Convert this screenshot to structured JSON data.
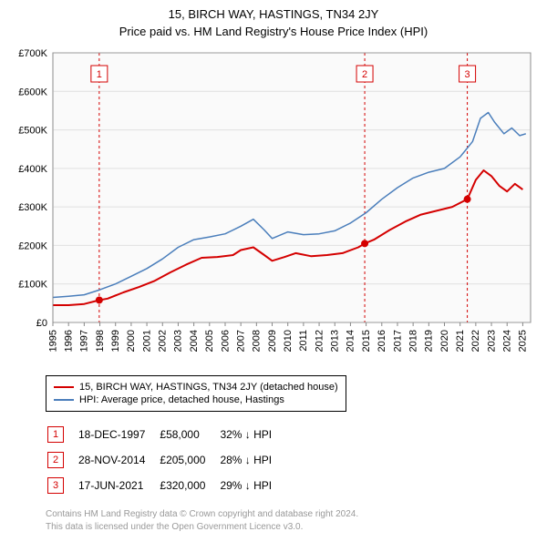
{
  "title_line1": "15, BIRCH WAY, HASTINGS, TN34 2JY",
  "title_line2": "Price paid vs. HM Land Registry's House Price Index (HPI)",
  "chart": {
    "type": "line",
    "background_color": "#ffffff",
    "plot_bg_color": "#fafafa",
    "grid_color": "#e0e0e0",
    "axis_color": "#888888",
    "font_family": "Arial",
    "label_fontsize": 11,
    "x_range": [
      1995,
      2025.5
    ],
    "x_ticks": [
      1995,
      1996,
      1997,
      1998,
      1999,
      2000,
      2001,
      2002,
      2003,
      2004,
      2005,
      2006,
      2007,
      2008,
      2009,
      2010,
      2011,
      2012,
      2013,
      2014,
      2015,
      2016,
      2017,
      2018,
      2019,
      2020,
      2021,
      2022,
      2023,
      2024,
      2025
    ],
    "xtick_label_rotation": -90,
    "y_range": [
      0,
      700000
    ],
    "y_ticks": [
      0,
      100000,
      200000,
      300000,
      400000,
      500000,
      600000,
      700000
    ],
    "y_tick_labels": [
      "£0",
      "£100K",
      "£200K",
      "£300K",
      "£400K",
      "£500K",
      "£600K",
      "£700K"
    ],
    "series": [
      {
        "name": "price_paid",
        "label": "15, BIRCH WAY, HASTINGS, TN34 2JY (detached house)",
        "color": "#d40000",
        "line_width": 2,
        "data": [
          [
            1995.0,
            45000
          ],
          [
            1996.0,
            45000
          ],
          [
            1997.0,
            48000
          ],
          [
            1997.96,
            58000
          ],
          [
            1998.5,
            62000
          ],
          [
            1999.5,
            78000
          ],
          [
            2000.5,
            92000
          ],
          [
            2001.5,
            108000
          ],
          [
            2002.5,
            130000
          ],
          [
            2003.5,
            150000
          ],
          [
            2004.5,
            168000
          ],
          [
            2005.5,
            170000
          ],
          [
            2006.5,
            175000
          ],
          [
            2007.0,
            188000
          ],
          [
            2007.8,
            195000
          ],
          [
            2008.5,
            175000
          ],
          [
            2009.0,
            160000
          ],
          [
            2009.8,
            170000
          ],
          [
            2010.5,
            180000
          ],
          [
            2011.5,
            172000
          ],
          [
            2012.5,
            175000
          ],
          [
            2013.5,
            180000
          ],
          [
            2014.5,
            195000
          ],
          [
            2014.91,
            205000
          ],
          [
            2015.5,
            215000
          ],
          [
            2016.5,
            240000
          ],
          [
            2017.5,
            262000
          ],
          [
            2018.5,
            280000
          ],
          [
            2019.5,
            290000
          ],
          [
            2020.5,
            300000
          ],
          [
            2021.46,
            320000
          ],
          [
            2022.0,
            370000
          ],
          [
            2022.5,
            395000
          ],
          [
            2023.0,
            380000
          ],
          [
            2023.5,
            355000
          ],
          [
            2024.0,
            340000
          ],
          [
            2024.5,
            360000
          ],
          [
            2025.0,
            345000
          ]
        ]
      },
      {
        "name": "hpi",
        "label": "HPI: Average price, detached house, Hastings",
        "color": "#4a7ebb",
        "line_width": 1.5,
        "data": [
          [
            1995.0,
            65000
          ],
          [
            1996.0,
            68000
          ],
          [
            1997.0,
            72000
          ],
          [
            1998.0,
            85000
          ],
          [
            1999.0,
            100000
          ],
          [
            2000.0,
            120000
          ],
          [
            2001.0,
            140000
          ],
          [
            2002.0,
            165000
          ],
          [
            2003.0,
            195000
          ],
          [
            2004.0,
            215000
          ],
          [
            2005.0,
            222000
          ],
          [
            2006.0,
            230000
          ],
          [
            2007.0,
            250000
          ],
          [
            2007.8,
            268000
          ],
          [
            2008.5,
            240000
          ],
          [
            2009.0,
            218000
          ],
          [
            2010.0,
            235000
          ],
          [
            2011.0,
            228000
          ],
          [
            2012.0,
            230000
          ],
          [
            2013.0,
            238000
          ],
          [
            2014.0,
            258000
          ],
          [
            2015.0,
            285000
          ],
          [
            2016.0,
            320000
          ],
          [
            2017.0,
            350000
          ],
          [
            2018.0,
            375000
          ],
          [
            2019.0,
            390000
          ],
          [
            2020.0,
            400000
          ],
          [
            2021.0,
            430000
          ],
          [
            2021.8,
            470000
          ],
          [
            2022.3,
            530000
          ],
          [
            2022.8,
            545000
          ],
          [
            2023.2,
            520000
          ],
          [
            2023.8,
            490000
          ],
          [
            2024.3,
            505000
          ],
          [
            2024.8,
            485000
          ],
          [
            2025.2,
            490000
          ]
        ]
      }
    ],
    "sale_markers": [
      {
        "num": "1",
        "x": 1997.96,
        "y": 58000
      },
      {
        "num": "2",
        "x": 2014.91,
        "y": 205000
      },
      {
        "num": "3",
        "x": 2021.46,
        "y": 320000
      }
    ],
    "marker_line_color": "#d40000",
    "marker_line_dash": "3,3",
    "marker_badge_border": "#d40000",
    "marker_badge_text": "#d40000",
    "marker_badge_bg": "#ffffff",
    "marker_dot_color": "#d40000"
  },
  "legend": {
    "items": [
      {
        "color": "#d40000",
        "label": "15, BIRCH WAY, HASTINGS, TN34 2JY (detached house)"
      },
      {
        "color": "#4a7ebb",
        "label": "HPI: Average price, detached house, Hastings"
      }
    ]
  },
  "sales": [
    {
      "num": "1",
      "date": "18-DEC-1997",
      "price": "£58,000",
      "delta": "32% ↓ HPI"
    },
    {
      "num": "2",
      "date": "28-NOV-2014",
      "price": "£205,000",
      "delta": "28% ↓ HPI"
    },
    {
      "num": "3",
      "date": "17-JUN-2021",
      "price": "£320,000",
      "delta": "29% ↓ HPI"
    }
  ],
  "footer_line1": "Contains HM Land Registry data © Crown copyright and database right 2024.",
  "footer_line2": "This data is licensed under the Open Government Licence v3.0."
}
